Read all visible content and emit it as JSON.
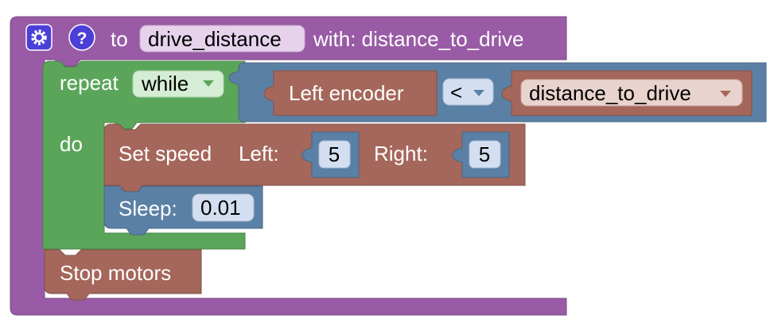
{
  "procedure": {
    "to_label": "to",
    "name": "drive_distance",
    "with_label": "with: distance_to_drive",
    "gear_icon": "gear-icon",
    "help_icon": "question-icon"
  },
  "repeat_block": {
    "repeat_label": "repeat",
    "mode_value": "while",
    "do_label": "do"
  },
  "condition": {
    "left_block": "Left encoder",
    "operator": "<",
    "right_variable": "distance_to_drive"
  },
  "set_speed": {
    "label": "Set speed",
    "left_label": "Left:",
    "left_value": "5",
    "right_label": "Right:",
    "right_value": "5"
  },
  "sleep": {
    "label": "Sleep:",
    "value": "0.01"
  },
  "stop": {
    "label": "Stop motors"
  },
  "colors": {
    "procedure": "#995ba5",
    "procedure_dark": "#7a4984",
    "loop": "#5ba55b",
    "loop_dark": "#498449",
    "logic": "#5b80a5",
    "logic_dark": "#496684",
    "motor": "#a5675b",
    "motor_dark": "#845249",
    "sleep": "#5b80a5"
  }
}
